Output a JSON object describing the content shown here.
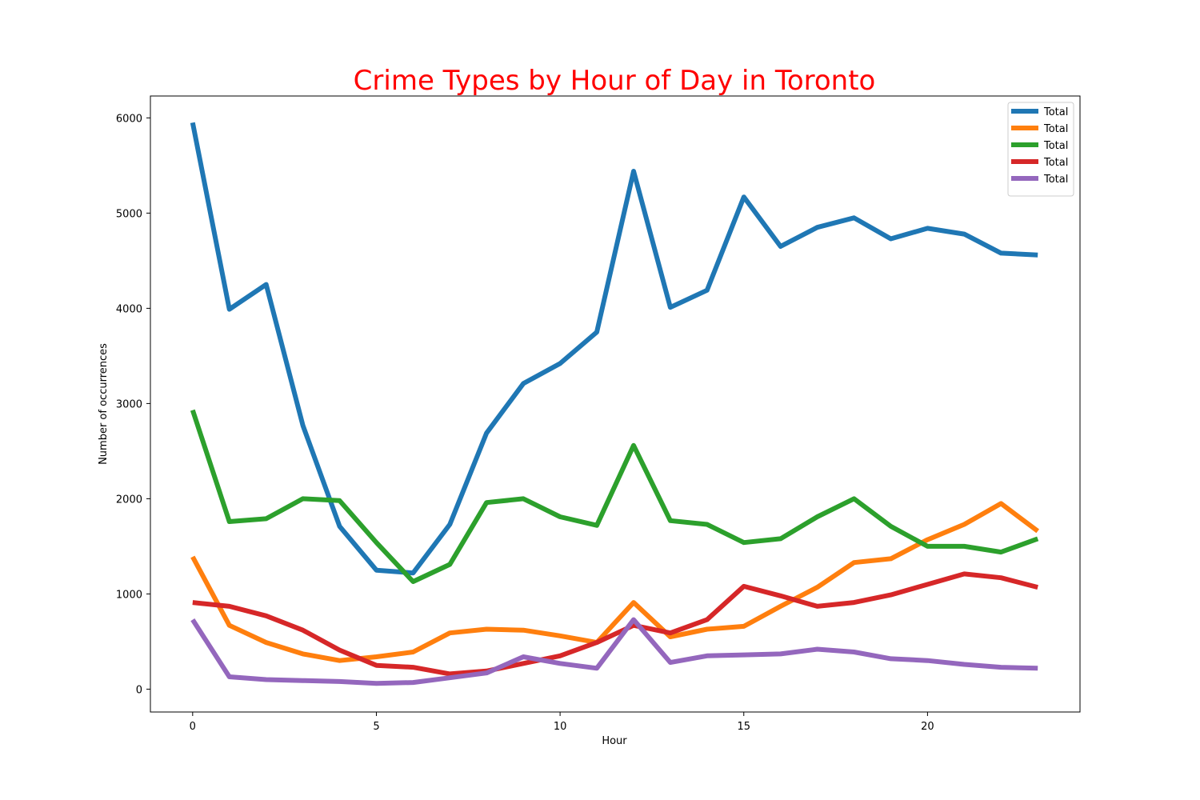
{
  "chart_data": {
    "type": "line",
    "title": "Crime Types by Hour of Day in Toronto",
    "title_color": "#ff0000",
    "xlabel": "Hour",
    "ylabel": "Number of occurrences",
    "xlim": [
      -1.15,
      24.15
    ],
    "ylim": [
      -240,
      6230
    ],
    "xticks": [
      0,
      5,
      10,
      15,
      20
    ],
    "yticks": [
      0,
      1000,
      2000,
      3000,
      4000,
      5000,
      6000
    ],
    "grid": false,
    "legend_position": "top-right",
    "x": [
      0,
      1,
      2,
      3,
      4,
      5,
      6,
      7,
      8,
      9,
      10,
      11,
      12,
      13,
      14,
      15,
      16,
      17,
      18,
      19,
      20,
      21,
      22,
      23
    ],
    "series": [
      {
        "name": "Total",
        "color": "#1f77b4",
        "values": [
          5950,
          3990,
          4250,
          2770,
          1710,
          1250,
          1220,
          1730,
          2690,
          3210,
          3420,
          3750,
          5440,
          4010,
          4190,
          5170,
          4650,
          4850,
          4950,
          4730,
          4840,
          4780,
          4580,
          4560
        ]
      },
      {
        "name": "Total",
        "color": "#ff7f0e",
        "values": [
          1390,
          670,
          490,
          370,
          300,
          340,
          390,
          590,
          630,
          620,
          560,
          490,
          910,
          550,
          630,
          660,
          870,
          1070,
          1330,
          1370,
          1570,
          1730,
          1950,
          1660
        ]
      },
      {
        "name": "Total",
        "color": "#2ca02c",
        "values": [
          2930,
          1760,
          1790,
          2000,
          1980,
          1540,
          1130,
          1310,
          1960,
          2000,
          1810,
          1720,
          2560,
          1770,
          1730,
          1540,
          1580,
          1810,
          2000,
          1710,
          1500,
          1500,
          1440,
          1580
        ]
      },
      {
        "name": "Total",
        "color": "#d62728",
        "values": [
          910,
          870,
          770,
          620,
          410,
          250,
          230,
          160,
          190,
          270,
          350,
          490,
          670,
          590,
          730,
          1080,
          980,
          870,
          910,
          990,
          1100,
          1210,
          1170,
          1070
        ]
      },
      {
        "name": "Total",
        "color": "#9467bd",
        "values": [
          730,
          130,
          100,
          90,
          80,
          60,
          70,
          120,
          170,
          340,
          270,
          220,
          730,
          280,
          350,
          360,
          370,
          420,
          390,
          320,
          300,
          260,
          230,
          220
        ]
      }
    ]
  }
}
